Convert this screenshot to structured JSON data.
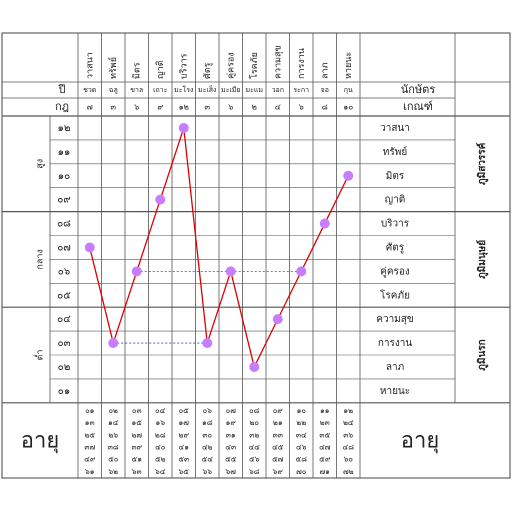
{
  "chart_data": {
    "type": "line",
    "x": [
      "วาสนา",
      "ทรัพย์",
      "มิตร",
      "ญาติ",
      "บริวาร",
      "ศัตรู",
      "คู่ครอง",
      "โรคภัย",
      "ความสุข",
      "การงาน",
      "ลาภ",
      "หายนะ"
    ],
    "x_short": [
      "ชวด",
      "ฉลู",
      "ขาล",
      "เถาะ",
      "มะโรง",
      "มะเส็ง",
      "มะเมีย",
      "มะแม",
      "วอก",
      "ระกา",
      "จอ",
      "กุน"
    ],
    "x_year_values": [
      "๗",
      "๓",
      "๖",
      "๙",
      "๑๒",
      "๓",
      "๖",
      "๒",
      "๔",
      "๖",
      "๘",
      "๑๐"
    ],
    "y_levels": [
      "๑๒",
      "๑๑",
      "๑๐",
      "๐๙",
      "๐๘",
      "๐๗",
      "๐๖",
      "๐๕",
      "๐๔",
      "๐๓",
      "๐๒",
      "๐๑"
    ],
    "y_values": [
      7,
      3,
      6,
      9,
      12,
      3,
      6,
      2,
      4,
      6,
      8,
      10
    ],
    "ylim": [
      1,
      12
    ],
    "line_color": "#dd0000",
    "point_color": "#c77dff",
    "dashed_connectors": [
      [
        2,
        6
      ],
      [
        1,
        5
      ],
      [
        6,
        9
      ]
    ],
    "row_labels_right": [
      "วาสนา",
      "ทรัพย์",
      "มิตร",
      "ญาติ",
      "บริวาร",
      "ศัตรู",
      "คู่ครอง",
      "โรคภัย",
      "ความสุข",
      "การงาน",
      "ลาภ",
      "หายนะ"
    ],
    "zones": [
      {
        "left_label": "สูง",
        "right_label": "ภูมิสวรรค์"
      },
      {
        "left_label": "กลาง",
        "right_label": "ภูมิมนุษย์"
      },
      {
        "left_label": "ต่ำ",
        "right_label": "ภูมินรก"
      }
    ],
    "header_left": [
      "ปี",
      "กฎ"
    ],
    "header_right": [
      "นักษัตร",
      "เกณฑ์"
    ],
    "age_label": "อายุ",
    "age_table": [
      [
        "๐๑",
        "๐๒",
        "๐๓",
        "๐๔",
        "๐๕",
        "๐๖",
        "๐๗",
        "๐๘",
        "๐๙",
        "๑๐",
        "๑๑",
        "๑๒"
      ],
      [
        "๑๓",
        "๑๔",
        "๑๕",
        "๑๖",
        "๑๗",
        "๑๘",
        "๑๙",
        "๒๐",
        "๒๑",
        "๒๒",
        "๒๓",
        "๒๔"
      ],
      [
        "๒๕",
        "๒๖",
        "๒๗",
        "๒๘",
        "๒๙",
        "๓๐",
        "๓๑",
        "๓๒",
        "๓๓",
        "๓๔",
        "๓๕",
        "๓๖"
      ],
      [
        "๓๗",
        "๓๘",
        "๓๙",
        "๔๐",
        "๔๑",
        "๔๒",
        "๔๓",
        "๔๔",
        "๔๕",
        "๔๖",
        "๔๗",
        "๔๘"
      ],
      [
        "๔๙",
        "๕๐",
        "๕๑",
        "๕๒",
        "๕๓",
        "๕๔",
        "๕๕",
        "๕๖",
        "๕๗",
        "๕๘",
        "๕๙",
        "๖๐"
      ],
      [
        "๖๑",
        "๖๒",
        "๖๓",
        "๖๔",
        "๖๕",
        "๖๖",
        "๖๗",
        "๖๘",
        "๖๙",
        "๗๐",
        "๗๑",
        "๗๒"
      ]
    ]
  }
}
